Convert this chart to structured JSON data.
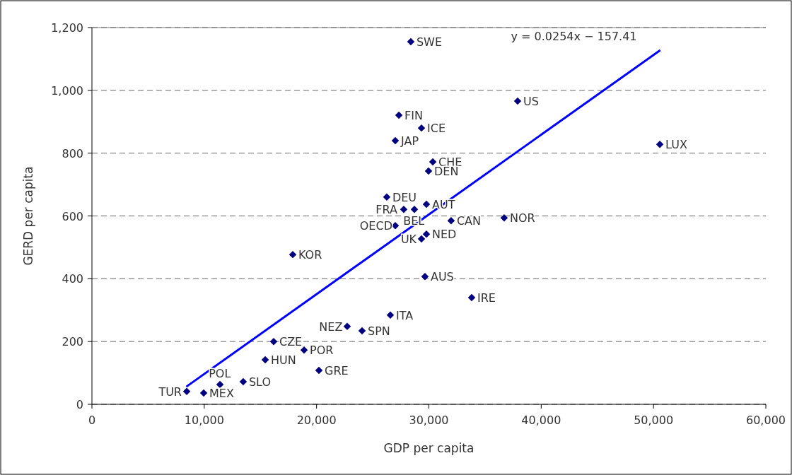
{
  "chart_data": {
    "type": "scatter",
    "xlabel": "GDP per capita",
    "ylabel": "GERD per capita",
    "grid": "y",
    "xlim": [
      0,
      60000
    ],
    "ylim": [
      0,
      1200
    ],
    "xticks": [
      0,
      {
        "value": 10000,
        "label": "10,000"
      },
      {
        "value": 20000,
        "label": "20,000"
      },
      {
        "value": 30000,
        "label": "30,000"
      },
      {
        "value": 40000,
        "label": "40,000"
      },
      {
        "value": 50000,
        "label": "50,000"
      },
      {
        "value": 60000,
        "label": "60,000"
      }
    ],
    "yticks": [
      0,
      200,
      400,
      600,
      800,
      {
        "value": 1000,
        "label": "1,000"
      },
      {
        "value": 1200,
        "label": "1,200"
      }
    ],
    "series": [
      {
        "marker": "diamond",
        "color": "#000080",
        "x": [
          8440,
          9950,
          11400,
          13470,
          15430,
          16180,
          18890,
          20210,
          22730,
          24050,
          26570,
          28390,
          27330,
          29340,
          27010,
          37900,
          30350,
          29970,
          26250,
          27760,
          28710,
          29780,
          36700,
          31980,
          27010,
          29780,
          29340,
          29650,
          33810,
          17880,
          50560
        ],
        "values": [
          41,
          36,
          63,
          72,
          142,
          200,
          173,
          108,
          248,
          234,
          284,
          1155,
          921,
          880,
          840,
          966,
          772,
          743,
          660,
          621,
          621,
          637,
          594,
          585,
          569,
          542,
          527,
          407,
          340,
          477,
          828
        ]
      },
      {
        "type": "line",
        "color": "#0000ff",
        "x": [
          8400,
          50600
        ],
        "values": [
          56,
          1128
        ]
      }
    ],
    "annotations": [
      {
        "text": "TUR",
        "x": 8440,
        "y": 41
      },
      {
        "text": "MEX",
        "x": 9950,
        "y": 36
      },
      {
        "text": "POL",
        "x": 11400,
        "y": 63
      },
      {
        "text": "SLO",
        "x": 13470,
        "y": 72
      },
      {
        "text": "HUN",
        "x": 15430,
        "y": 142
      },
      {
        "text": "CZE",
        "x": 16180,
        "y": 200
      },
      {
        "text": "POR",
        "x": 18890,
        "y": 173
      },
      {
        "text": "GRE",
        "x": 20210,
        "y": 108
      },
      {
        "text": "NEZ",
        "x": 22730,
        "y": 248
      },
      {
        "text": "SPN",
        "x": 24050,
        "y": 234
      },
      {
        "text": "ITA",
        "x": 26570,
        "y": 284
      },
      {
        "text": "SWE",
        "x": 28390,
        "y": 1155
      },
      {
        "text": "FIN",
        "x": 27330,
        "y": 921
      },
      {
        "text": "ICE",
        "x": 29340,
        "y": 880
      },
      {
        "text": "JAP",
        "x": 27010,
        "y": 840
      },
      {
        "text": "US",
        "x": 37900,
        "y": 966
      },
      {
        "text": "CHE",
        "x": 30350,
        "y": 772
      },
      {
        "text": "DEN",
        "x": 29970,
        "y": 743
      },
      {
        "text": "DEU",
        "x": 26250,
        "y": 660
      },
      {
        "text": "FRA",
        "x": 27760,
        "y": 621
      },
      {
        "text": "BEL",
        "x": 28710,
        "y": 621
      },
      {
        "text": "AUT",
        "x": 29780,
        "y": 637
      },
      {
        "text": "NOR",
        "x": 36700,
        "y": 594
      },
      {
        "text": "CAN",
        "x": 31980,
        "y": 585
      },
      {
        "text": "OECD",
        "x": 27010,
        "y": 569
      },
      {
        "text": "NED",
        "x": 29780,
        "y": 542
      },
      {
        "text": "UK",
        "x": 29340,
        "y": 527
      },
      {
        "text": "AUS",
        "x": 29650,
        "y": 407
      },
      {
        "text": "IRE",
        "x": 33810,
        "y": 340
      },
      {
        "text": "KOR",
        "x": 17880,
        "y": 477
      },
      {
        "text": "LUX",
        "x": 50560,
        "y": 828
      },
      {
        "text": "y = 0.0254x − 157.41",
        "x": 50600,
        "y": 1128
      }
    ]
  }
}
